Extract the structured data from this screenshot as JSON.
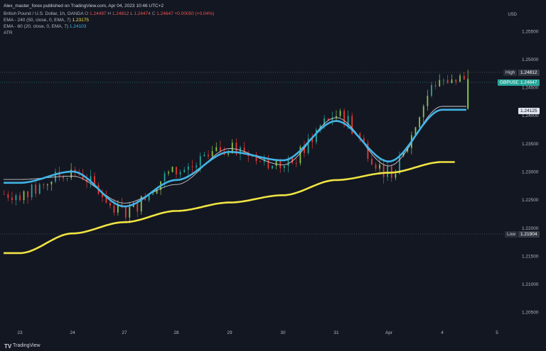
{
  "header": {
    "published_by": "Alex_master_forex published on TradingView.com, Apr 04, 2023 10:46 UTC+2",
    "symbol_desc": "British Pound / U.S. Dollar, 1h, OANDA",
    "ohlc": {
      "o_label": "O",
      "o": "1.24497",
      "h_label": "H",
      "h": "1.24812",
      "l_label": "L",
      "l": "1.24474",
      "c_label": "C",
      "c": "1.24647",
      "change": "+0.00050 (+0.04%)"
    },
    "ema240_label": "EMA - 240 (50, close, 0, EMA, 7)",
    "ema240_value": "1.23175",
    "ema60_label": "EMA - 60 (20, close, 0, EMA, 7)",
    "ema60_value": "1.24103",
    "atr_label": "ATR"
  },
  "price_axis": {
    "currency": "USD",
    "ticks": [
      "1.25500",
      "1.25000",
      "1.24500",
      "1.24000",
      "1.23500",
      "1.23000",
      "1.22500",
      "1.22000",
      "1.21500",
      "1.21000",
      "1.20500"
    ]
  },
  "tags": {
    "high_label": "High",
    "high_value": "1.24812",
    "symbol_label": "GBPUSD",
    "symbol_value": "1.24647",
    "ema60_value": "1.24125",
    "low_label": "Low",
    "low_value": "1.21904"
  },
  "time_axis": {
    "labels": [
      "23",
      "24",
      "27",
      "28",
      "29",
      "30",
      "31",
      "Apr",
      "4",
      "5"
    ]
  },
  "footer": {
    "brand": "TradingView"
  },
  "colors": {
    "background": "#131722",
    "bull": "#26a69a",
    "bull_alt": "#8bc34a",
    "bear": "#e53935",
    "ema_long": "#f0e442",
    "ema_short": "#42b4e6",
    "ema_thin": "#c8c8c8"
  },
  "chart_data": {
    "type": "line",
    "x": [
      "23",
      "24",
      "27",
      "28",
      "29",
      "30",
      "31",
      "Apr",
      "4",
      "5"
    ],
    "ylim": [
      1.2025,
      1.258
    ],
    "grid": false,
    "series": [
      {
        "name": "EMA - 240",
        "values": [
          1.2155,
          1.219,
          1.221,
          1.223,
          1.2245,
          1.2258,
          1.2285,
          1.2298,
          1.2317,
          null
        ]
      },
      {
        "name": "EMA - 60",
        "values": [
          1.228,
          1.23,
          1.2238,
          1.2285,
          1.2335,
          1.232,
          1.239,
          1.2318,
          1.241,
          null
        ]
      }
    ],
    "price_close": [
      1.226,
      1.23,
      1.223,
      1.23,
      1.234,
      1.231,
      1.24,
      1.23,
      1.2465,
      null
    ]
  }
}
